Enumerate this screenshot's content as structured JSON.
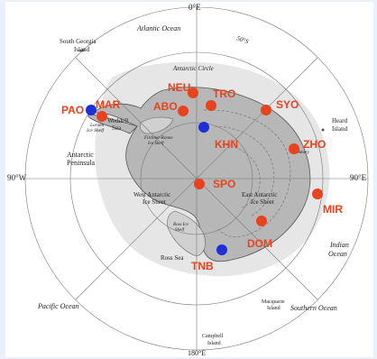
{
  "compass": {
    "top": "0°E",
    "left": "90°W",
    "right": "90°E",
    "bottom": "180°E"
  },
  "regions": {
    "atlantic_ocean": "Atlantic Ocean",
    "south_georgia": [
      "South Georgia",
      "Island"
    ],
    "antarctic_circle": "Antarctic Circle",
    "lat_label": "50°S",
    "weddell_sea": [
      "Weddell",
      "Sea"
    ],
    "larsen": [
      "Larsen",
      "Ice Shelf"
    ],
    "filchner": [
      "Filchner-Ronne",
      "Ice Shelf"
    ],
    "antarctic_peninsula": [
      "Antarctic",
      "Peninsula"
    ],
    "heard_island": [
      "Heard",
      "Island"
    ],
    "amery": [
      "Amery",
      "Ice Shelf"
    ],
    "west_ice_sheet": [
      "West Antarctic",
      "Ice Sheet"
    ],
    "east_ice_sheet": [
      "East Antarctic",
      "Ice Sheet"
    ],
    "ross_ice_shelf": [
      "Ross Ice",
      "Shelf"
    ],
    "ross_sea": "Ross Sea",
    "indian_ocean": [
      "Indian",
      "Ocean"
    ],
    "pacific_ocean": "Pacific Ocean",
    "southern_ocean": "Southern Ocean",
    "macquarie": [
      "Macquarie",
      "Island"
    ],
    "campbell": [
      "Campbell",
      "Island"
    ]
  },
  "stations": [
    {
      "code": "PAO",
      "type": "blue"
    },
    {
      "code": "MAR",
      "type": "red"
    },
    {
      "code": "NEU",
      "type": "red"
    },
    {
      "code": "ABO",
      "type": "red"
    },
    {
      "code": "TRO",
      "type": "red"
    },
    {
      "code": "SYO",
      "type": "red"
    },
    {
      "code": "KHN",
      "type": "blue"
    },
    {
      "code": "ZHO",
      "type": "red"
    },
    {
      "code": "SPO",
      "type": "red"
    },
    {
      "code": "MIR",
      "type": "red"
    },
    {
      "code": "DOM",
      "type": "red"
    },
    {
      "code": "TNB",
      "type": "blue"
    }
  ],
  "colors": {
    "red": "#e8431f",
    "blue": "#1f2fd8",
    "ice": "#e4e4e4",
    "sea": "#ffffff"
  }
}
